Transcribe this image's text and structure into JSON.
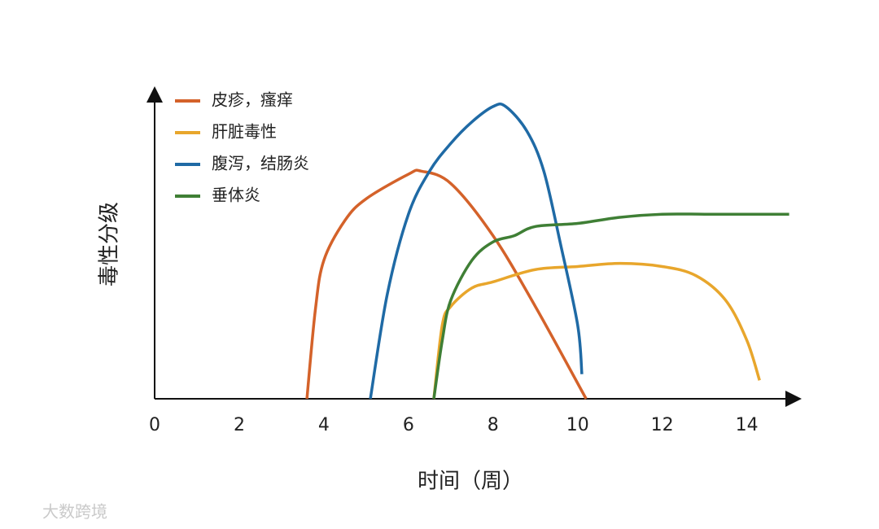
{
  "chart_data": {
    "type": "line",
    "xlabel": "时间（周）",
    "ylabel": "毒性分级",
    "xlim": [
      0,
      15.2
    ],
    "ylim": [
      0,
      100
    ],
    "xticks": [
      0,
      2,
      4,
      6,
      8,
      10,
      12,
      14
    ],
    "legend": "top-left",
    "watermark": "大数跨境",
    "series": [
      {
        "name": "皮疹，瘙痒",
        "color": "#d4622a",
        "x": [
          3.6,
          3.8,
          4,
          4.5,
          5,
          6,
          6.3,
          7,
          8,
          9,
          10.2
        ],
        "values": [
          0,
          29,
          45,
          58,
          65,
          73,
          74,
          70,
          53,
          30,
          0
        ]
      },
      {
        "name": "肝脏毒性",
        "color": "#e8a62c",
        "x": [
          6.6,
          6.8,
          7,
          7.5,
          8,
          9,
          10,
          11,
          12,
          12.8,
          13.5,
          14,
          14.3
        ],
        "values": [
          0,
          24,
          30,
          36,
          38,
          42,
          43,
          44,
          43,
          40,
          32,
          19,
          6
        ]
      },
      {
        "name": "腹泻，结肠炎",
        "color": "#1f6aa5",
        "x": [
          5.1,
          5.5,
          6,
          6.5,
          7,
          7.5,
          8,
          8.3,
          8.8,
          9.2,
          9.6,
          10,
          10.1
        ],
        "values": [
          0,
          34,
          60,
          74,
          83,
          90,
          95,
          95,
          87,
          74,
          50,
          24,
          8
        ]
      },
      {
        "name": "垂体炎",
        "color": "#3f7f35",
        "x": [
          6.6,
          6.8,
          7,
          7.5,
          8,
          8.5,
          9,
          10,
          11,
          12,
          13,
          14,
          15
        ],
        "values": [
          0,
          19,
          32,
          45,
          51,
          53,
          56,
          57,
          59,
          60,
          60,
          60,
          60
        ]
      }
    ]
  }
}
